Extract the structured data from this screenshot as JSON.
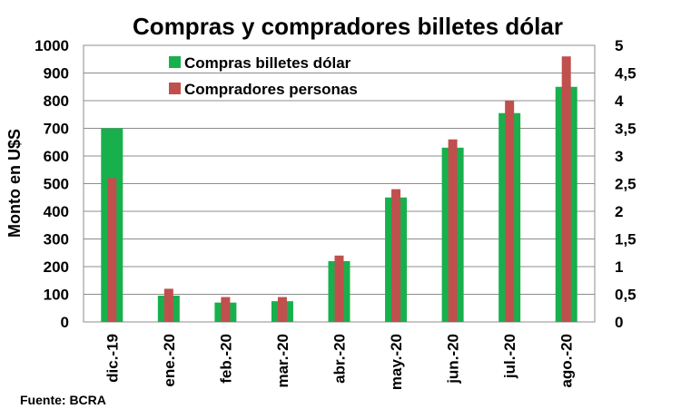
{
  "chart_data": {
    "type": "bar",
    "title": "Compras y compradores billetes dólar",
    "categories": [
      "dic.-19",
      "ene.-20",
      "feb.-20",
      "mar.-20",
      "abr.-20",
      "may.-20",
      "jun.-20",
      "jul.-20",
      "ago.-20"
    ],
    "ylabel": "Monto en U$S",
    "ylim": [
      0,
      1000
    ],
    "y_ticks": [
      "0",
      "100",
      "200",
      "300",
      "400",
      "500",
      "600",
      "700",
      "800",
      "900",
      "1000"
    ],
    "y2lim": [
      0,
      5
    ],
    "y2_ticks": [
      "0",
      "0,5",
      "1",
      "1,5",
      "2",
      "2,5",
      "3",
      "3,5",
      "4",
      "4,5",
      "5"
    ],
    "series": [
      {
        "name": "Compras billetes dólar",
        "axis": "left",
        "color": "#18b04c",
        "values": [
          700,
          95,
          70,
          75,
          220,
          450,
          630,
          755,
          850
        ]
      },
      {
        "name": "Compradores personas",
        "axis": "right",
        "color": "#c0504d",
        "values": [
          2.6,
          0.6,
          0.45,
          0.45,
          1.2,
          2.4,
          3.3,
          4.0,
          4.8
        ]
      }
    ],
    "grid": true,
    "legend": "top-left",
    "source": "Fuente: BCRA"
  }
}
